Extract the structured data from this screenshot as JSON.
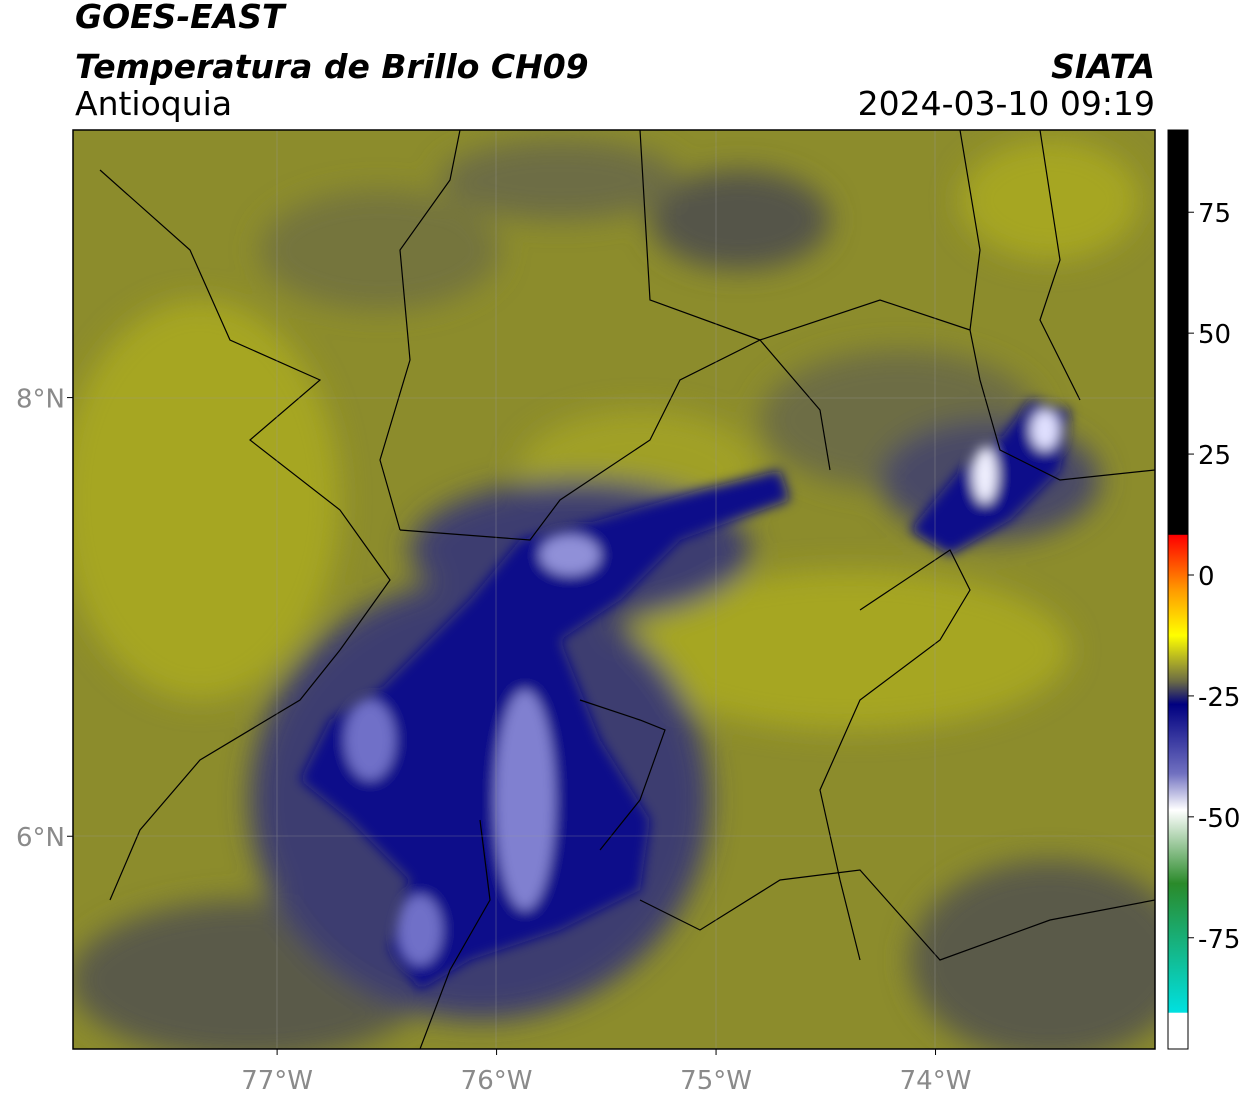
{
  "header": {
    "title": "GOES-EAST",
    "subtitle": "Temperatura de Brillo CH09",
    "region": "Antioquia",
    "source": "SIATA",
    "datetime": "2024-03-10 09:19"
  },
  "map": {
    "lon_range": [
      -77.93,
      -73.0
    ],
    "lat_range": [
      5.03,
      9.22
    ],
    "lon_ticks": [
      {
        "value": -77,
        "label": "77°W"
      },
      {
        "value": -76,
        "label": "76°W"
      },
      {
        "value": -75,
        "label": "75°W"
      },
      {
        "value": -74,
        "label": "74°W"
      }
    ],
    "lat_ticks": [
      {
        "value": 8,
        "label": "8°N"
      },
      {
        "value": 6,
        "label": "6°N"
      }
    ]
  },
  "colorbar": {
    "range": [
      -98,
      92
    ],
    "ticks": [
      75,
      50,
      25,
      0,
      -25,
      -50,
      -75
    ]
  }
}
